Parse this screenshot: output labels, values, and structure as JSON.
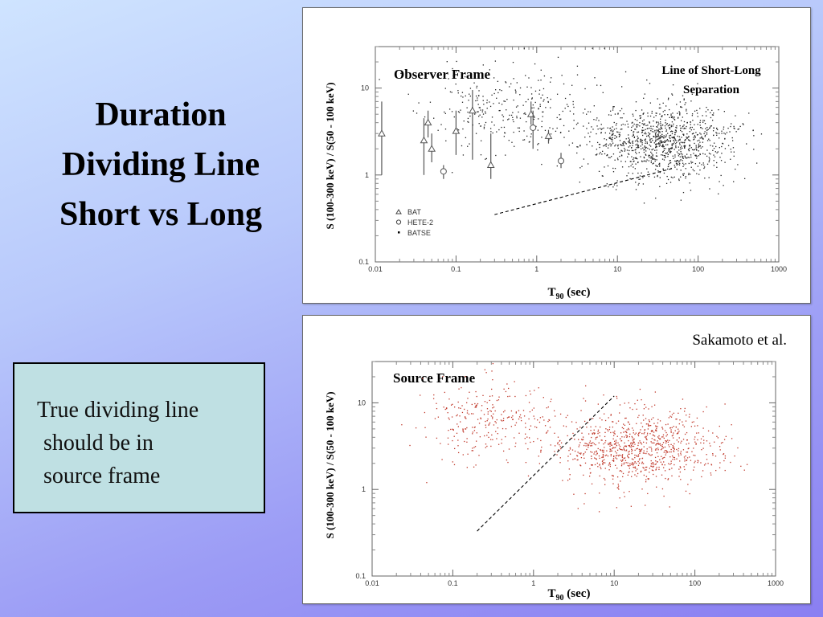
{
  "slide": {
    "title_lines": [
      "Duration",
      "Dividing Line",
      "Short vs Long"
    ],
    "note_lines": [
      "True dividing line",
      "should be in",
      "source frame"
    ]
  },
  "colors": {
    "batse_observer": "#222222",
    "source_points": "#c0392b",
    "bat_markers": "#555555"
  },
  "chart_data": [
    {
      "type": "scatter",
      "title": "Observer Frame",
      "annotation": [
        "Line of Short-Long",
        "Separation"
      ],
      "xlabel": "T90 (sec)",
      "ylabel": "S (100-300 keV) / S(50 - 100 keV)",
      "x_scale": "log",
      "y_scale": "log",
      "xlim": [
        0.01,
        1000
      ],
      "ylim": [
        0.1,
        30
      ],
      "x_ticks": [
        "0.01",
        "0.1",
        "1",
        "10",
        "100",
        "1000"
      ],
      "y_ticks": [
        "0.1",
        "1",
        "10"
      ],
      "legend": [
        "BAT",
        "HETE-2",
        "BATSE"
      ],
      "separation_line": [
        [
          0.3,
          0.35
        ],
        [
          50,
          1.2
        ]
      ],
      "series": [
        {
          "name": "BAT",
          "marker": "triangle",
          "points": [
            {
              "x": 0.012,
              "y": 3.0,
              "ylo": 1.0,
              "yhi": 7.0
            },
            {
              "x": 0.04,
              "y": 2.5,
              "ylo": 1.0,
              "yhi": 4.5
            },
            {
              "x": 0.045,
              "y": 4.0,
              "ylo": 2.7,
              "yhi": 5.5
            },
            {
              "x": 0.05,
              "y": 2.0,
              "ylo": 1.4,
              "yhi": 3.0
            },
            {
              "x": 0.1,
              "y": 3.2,
              "ylo": 1.7,
              "yhi": 5.5
            },
            {
              "x": 0.16,
              "y": 5.5,
              "ylo": 1.5,
              "yhi": 9.5
            },
            {
              "x": 0.27,
              "y": 1.3,
              "ylo": 0.9,
              "yhi": 3.0
            },
            {
              "x": 0.85,
              "y": 5.0,
              "ylo": 3.8,
              "yhi": 7.0
            },
            {
              "x": 1.4,
              "y": 2.8,
              "ylo": 2.3,
              "yhi": 3.3
            }
          ]
        },
        {
          "name": "HETE-2",
          "marker": "circle",
          "points": [
            {
              "x": 0.07,
              "y": 1.1,
              "ylo": 0.9,
              "yhi": 1.3
            },
            {
              "x": 0.9,
              "y": 3.5,
              "ylo": 2.0,
              "yhi": 5.5
            },
            {
              "x": 2.0,
              "y": 1.45,
              "ylo": 1.2,
              "yhi": 1.8
            }
          ]
        },
        {
          "name": "BATSE",
          "marker": "dot",
          "clusters": [
            {
              "x_center": 0.45,
              "x_spread": 0.5,
              "y_center": 5.5,
              "y_spread": 0.25,
              "count": 300
            },
            {
              "x_center": 35,
              "x_spread": 0.45,
              "y_center": 2.5,
              "y_spread": 0.22,
              "count": 1100
            }
          ]
        }
      ]
    },
    {
      "type": "scatter",
      "title": "Source Frame",
      "credit": "Sakamoto et al.",
      "xlabel": "T90 (sec)",
      "ylabel": "S (100-300 keV) / S(50 - 100 keV)",
      "x_scale": "log",
      "y_scale": "log",
      "xlim": [
        0.01,
        1000
      ],
      "ylim": [
        0.1,
        30
      ],
      "x_ticks": [
        "0.01",
        "0.1",
        "1",
        "10",
        "100",
        "1000"
      ],
      "y_ticks": [
        "0.1",
        "1",
        "10"
      ],
      "separation_line": [
        [
          0.2,
          0.33
        ],
        [
          10,
          12
        ]
      ],
      "series": [
        {
          "name": "",
          "marker": "dot",
          "clusters": [
            {
              "x_center": 0.3,
              "x_spread": 0.45,
              "y_center": 6.5,
              "y_spread": 0.22,
              "count": 280
            },
            {
              "x_center": 20,
              "x_spread": 0.5,
              "y_center": 3.0,
              "y_spread": 0.22,
              "count": 900
            }
          ]
        }
      ]
    }
  ]
}
